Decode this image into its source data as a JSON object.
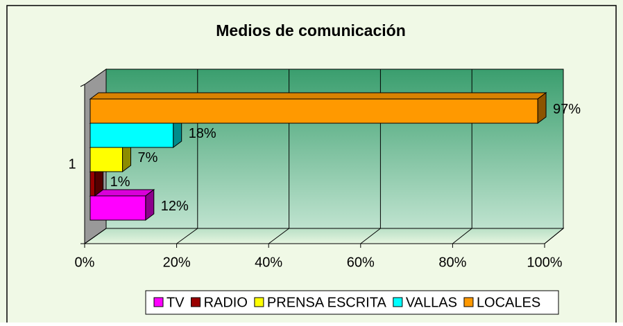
{
  "chart_data": {
    "type": "bar3d",
    "orientation": "horizontal",
    "title": "Medios de comunicación",
    "categories": [
      "1"
    ],
    "series": [
      {
        "name": "TV",
        "color": "#ff00ff",
        "values": [
          12
        ],
        "value_labels": [
          "12%"
        ]
      },
      {
        "name": "RADIO",
        "color": "#990000",
        "values": [
          1
        ],
        "value_labels": [
          "1%"
        ]
      },
      {
        "name": "PRENSA ESCRITA",
        "color": "#ffff00",
        "values": [
          7
        ],
        "value_labels": [
          "7%"
        ]
      },
      {
        "name": "VALLAS",
        "color": "#00ffff",
        "values": [
          18
        ],
        "value_labels": [
          "18%"
        ]
      },
      {
        "name": "LOCALES",
        "color": "#ff9900",
        "values": [
          97
        ],
        "value_labels": [
          "97%"
        ]
      }
    ],
    "xlim": [
      0,
      100
    ],
    "xticks": [
      {
        "value": 0,
        "label": "0%"
      },
      {
        "value": 20,
        "label": "20%"
      },
      {
        "value": 40,
        "label": "40%"
      },
      {
        "value": 60,
        "label": "60%"
      },
      {
        "value": 80,
        "label": "80%"
      },
      {
        "value": 100,
        "label": "100%"
      }
    ],
    "grid": true,
    "legend": "bottom"
  }
}
